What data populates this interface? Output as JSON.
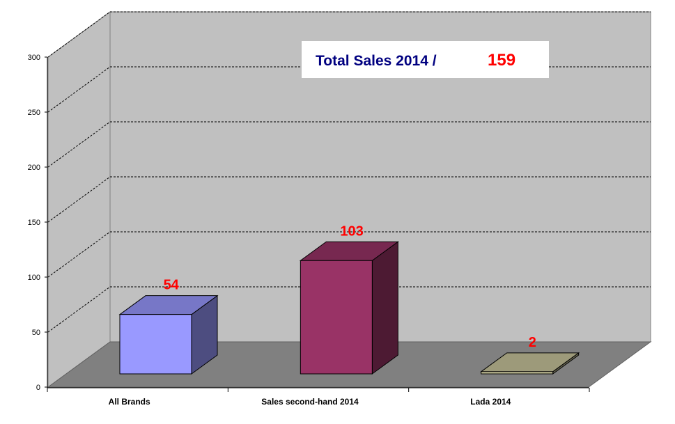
{
  "chart_data": {
    "type": "bar",
    "categories": [
      "All Brands",
      "Sales second-hand 2014",
      "Lada 2014"
    ],
    "values": [
      54,
      103,
      2
    ],
    "data_labels": [
      "54",
      "103",
      "2"
    ],
    "ylim": [
      0,
      300
    ],
    "yticks": [
      "0",
      "50",
      "100",
      "150",
      "200",
      "250",
      "300"
    ],
    "grid": true,
    "title": "Total Sales 2014 /",
    "title_value": "159",
    "xlabel": "",
    "ylabel": "",
    "style": "3d-column",
    "colors": {
      "bars": [
        "#9999ff",
        "#993366",
        "#c9c69c"
      ],
      "labels": "#ff0000",
      "title": "#000080",
      "title_value": "#ff0000",
      "walls": "#c0c0c0",
      "floor": "#808080"
    }
  }
}
